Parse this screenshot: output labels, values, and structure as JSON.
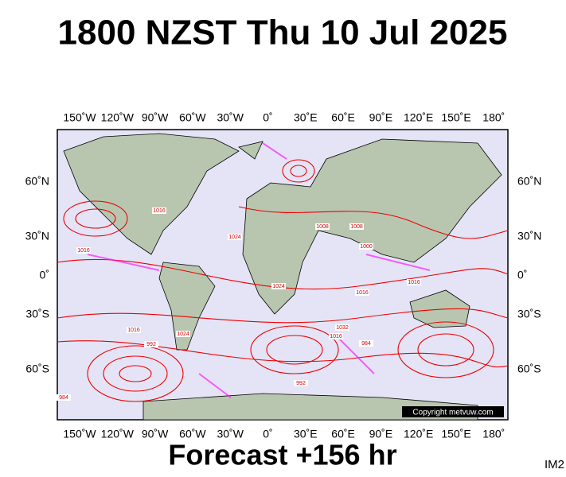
{
  "header": {
    "title": "1800 NZST Thu 10 Jul 2025"
  },
  "map": {
    "lon_labels": [
      "150˚W",
      "120˚W",
      "90˚W",
      "60˚W",
      "30˚W",
      "0˚",
      "30˚E",
      "60˚E",
      "90˚E",
      "120˚E",
      "150˚E",
      "180˚"
    ],
    "lat_labels": [
      "60˚N",
      "30˚N",
      "0˚",
      "30˚S",
      "60˚S"
    ],
    "isobar_labels": [
      "1016",
      "1024",
      "1016",
      "1008",
      "1008",
      "1000",
      "1016",
      "1024",
      "1016",
      "1032",
      "1016",
      "992",
      "984",
      "1024",
      "1016",
      "992",
      "984"
    ],
    "copyright": "Copyright metvuw.com"
  },
  "footer": {
    "forecast": "Forecast +156 hr",
    "id": "IM2"
  }
}
